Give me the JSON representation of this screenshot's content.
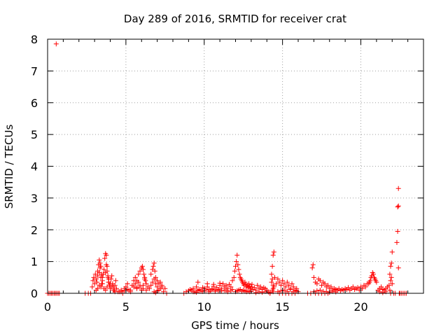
{
  "chart_data": {
    "type": "scatter",
    "title": "Day 289 of 2016, SRMTID for receiver crat",
    "xlabel": "GPS time / hours",
    "ylabel": "SRMTID / TECUs",
    "xlim": [
      0,
      24
    ],
    "ylim": [
      0,
      8
    ],
    "x_ticks": [
      0,
      5,
      10,
      15,
      20
    ],
    "x_tick_labels": [
      "0",
      "5",
      "10",
      "15",
      "20"
    ],
    "y_ticks": [
      0,
      1,
      2,
      3,
      4,
      5,
      6,
      7,
      8
    ],
    "y_tick_labels": [
      "0",
      "1",
      "2",
      "3",
      "4",
      "5",
      "6",
      "7",
      "8"
    ],
    "grid": true,
    "marker": "plus",
    "marker_color": "#ff0000",
    "series": [
      {
        "name": "SRMTID",
        "x": [
          0.0,
          0.08,
          0.17,
          0.25,
          0.33,
          0.42,
          0.5,
          0.58,
          0.67,
          0.75,
          0.55,
          2.4,
          2.6,
          2.75,
          2.85,
          2.9,
          2.95,
          3.0,
          3.05,
          3.1,
          3.15,
          3.2,
          3.25,
          3.3,
          3.35,
          3.4,
          3.45,
          3.5,
          3.55,
          3.6,
          3.65,
          3.7,
          3.75,
          3.8,
          3.85,
          3.9,
          3.95,
          4.0,
          4.05,
          4.1,
          4.15,
          4.2,
          4.25,
          4.3,
          4.35,
          4.4,
          4.5,
          3.1,
          3.2,
          3.3,
          3.4,
          3.5,
          3.6,
          3.7,
          3.8,
          3.9,
          4.0,
          4.1,
          4.2,
          4.3,
          3.2,
          3.3,
          3.35,
          3.4,
          3.45,
          3.5,
          3.7,
          3.75,
          3.8,
          3.85,
          3.9,
          4.6,
          4.7,
          4.8,
          4.9,
          5.0,
          5.1,
          5.2,
          5.3,
          5.4,
          5.5,
          5.6,
          5.7,
          5.8,
          5.9,
          6.0,
          6.1,
          6.2,
          6.3,
          6.4,
          4.7,
          4.9,
          5.1,
          5.3,
          5.5,
          5.7,
          5.9,
          6.1,
          6.3,
          5.6,
          5.7,
          5.8,
          5.9,
          6.0,
          6.05,
          6.1,
          6.15,
          6.2,
          6.25,
          6.5,
          6.6,
          6.7,
          6.8,
          6.9,
          7.0,
          7.1,
          7.2,
          7.3,
          7.4,
          6.6,
          6.7,
          6.75,
          6.8,
          6.85,
          6.9,
          7.0,
          7.1,
          7.2,
          7.3,
          7.5,
          6.8,
          6.9,
          7.0,
          7.6,
          8.7,
          8.85,
          9.0,
          9.1,
          9.2,
          9.3,
          9.4,
          9.5,
          9.6,
          9.7,
          9.8,
          9.9,
          10.0,
          10.1,
          10.2,
          10.3,
          10.4,
          10.5,
          10.6,
          10.7,
          10.8,
          10.9,
          11.0,
          11.1,
          11.2,
          11.3,
          11.4,
          11.5,
          11.6,
          11.7,
          11.8,
          9.3,
          9.5,
          9.7,
          9.9,
          10.1,
          10.3,
          10.5,
          10.7,
          10.9,
          11.1,
          11.3,
          11.5,
          11.7,
          9.6,
          10.2,
          10.6,
          11.0,
          11.4,
          11.8,
          11.9,
          11.95,
          12.0,
          12.05,
          12.1,
          12.15,
          12.2,
          12.25,
          12.3,
          12.35,
          12.4,
          12.45,
          12.5,
          12.55,
          12.6,
          12.65,
          12.7,
          12.75,
          12.8,
          12.85,
          12.9,
          12.95,
          13.0,
          13.05,
          13.1,
          13.2,
          13.3,
          13.4,
          13.5,
          13.6,
          13.7,
          13.8,
          13.9,
          14.0,
          12.0,
          12.1,
          12.2,
          12.3,
          12.4,
          12.5,
          12.6,
          12.7,
          12.8,
          12.9,
          13.0,
          13.3,
          13.5,
          13.7,
          13.9,
          14.1,
          14.2,
          14.3,
          14.35,
          14.4,
          14.45,
          14.5,
          14.3,
          14.35,
          14.4,
          14.35,
          14.4,
          14.4,
          14.45,
          14.6,
          14.7,
          14.8,
          14.9,
          15.0,
          15.1,
          15.2,
          15.3,
          15.4,
          15.5,
          15.6,
          15.7,
          15.8,
          15.9,
          16.0,
          14.7,
          14.9,
          15.1,
          15.3,
          15.5,
          15.7,
          15.9,
          14.8,
          15.0,
          15.2,
          15.4,
          15.6,
          15.8,
          14.2,
          16.6,
          16.8,
          16.9,
          16.95,
          17.0,
          17.1,
          17.2,
          17.3,
          17.4,
          17.5,
          17.6,
          17.7,
          17.8,
          17.9,
          18.0,
          18.1,
          18.2,
          18.3,
          18.4,
          18.5,
          18.6,
          18.7,
          18.8,
          18.9,
          19.0,
          19.1,
          19.2,
          19.3,
          19.4,
          19.5,
          19.6,
          19.7,
          19.8,
          19.9,
          20.0,
          20.1,
          20.2,
          20.3,
          20.4,
          17.0,
          17.2,
          17.4,
          17.6,
          17.8,
          18.0,
          18.2,
          18.4,
          17.1,
          17.3,
          17.5,
          17.7,
          17.9,
          20.5,
          20.55,
          20.6,
          20.65,
          20.7,
          20.75,
          20.8,
          20.85,
          20.9,
          20.95,
          21.0,
          21.1,
          21.2,
          21.3,
          21.4,
          21.5,
          21.6,
          21.7,
          21.8,
          21.2,
          21.4,
          21.6,
          21.85,
          21.9,
          21.95,
          22.0,
          21.9,
          21.95,
          22.0,
          21.85,
          21.9,
          22.1,
          22.2,
          22.3,
          22.35,
          22.4,
          22.4,
          22.35,
          22.4,
          22.45,
          22.5,
          22.6,
          22.7,
          22.8,
          22.9
        ],
        "y": [
          0,
          0,
          0,
          0,
          0,
          0,
          0,
          0,
          0,
          0,
          7.85,
          0,
          0,
          0,
          0.2,
          0.4,
          0.5,
          0.3,
          0.6,
          0.45,
          0.35,
          0.7,
          0.9,
          1.05,
          0.8,
          0.5,
          0.3,
          0.4,
          0.6,
          0.75,
          1.1,
          1.25,
          1.2,
          0.85,
          0.5,
          0.35,
          0.25,
          0.15,
          0.45,
          0.55,
          0.3,
          0.2,
          0.1,
          0.25,
          0.4,
          0.15,
          0.05,
          0.1,
          0.15,
          0.25,
          0.2,
          0.3,
          0.15,
          0.1,
          0.2,
          0.35,
          0.3,
          0.2,
          0.1,
          0.05,
          0.55,
          0.65,
          0.95,
          0.85,
          0.6,
          0.5,
          0.65,
          0.9,
          0.7,
          0.55,
          0.45,
          0.05,
          0.1,
          0.0,
          0.15,
          0.2,
          0.3,
          0.1,
          0.05,
          0.25,
          0.4,
          0.3,
          0.15,
          0.35,
          0.2,
          0.1,
          0.25,
          0.45,
          0.3,
          0.2,
          0.05,
          0.08,
          0.12,
          0.1,
          0.2,
          0.18,
          0.25,
          0.15,
          0.1,
          0.5,
          0.4,
          0.6,
          0.7,
          0.8,
          0.85,
          0.75,
          0.6,
          0.5,
          0.4,
          0.15,
          0.25,
          0.35,
          0.45,
          0.3,
          0.2,
          0.1,
          0.15,
          0.25,
          0.05,
          0.6,
          0.75,
          0.85,
          0.95,
          0.7,
          0.5,
          0.4,
          0.3,
          0.35,
          0.2,
          0.15,
          0.05,
          0.02,
          0.08,
          0.0,
          0.0,
          0.05,
          0.08,
          0.12,
          0.1,
          0.15,
          0.05,
          0.2,
          0.1,
          0.12,
          0.08,
          0.18,
          0.15,
          0.1,
          0.2,
          0.12,
          0.08,
          0.15,
          0.22,
          0.1,
          0.18,
          0.12,
          0.25,
          0.15,
          0.3,
          0.2,
          0.1,
          0.15,
          0.28,
          0.2,
          0.12,
          0.05,
          0.03,
          0.08,
          0.06,
          0.1,
          0.05,
          0.12,
          0.06,
          0.09,
          0.07,
          0.1,
          0.05,
          0.08,
          0.35,
          0.3,
          0.28,
          0.32,
          0.25,
          0.4,
          0.5,
          0.7,
          0.85,
          1.0,
          1.2,
          0.9,
          0.75,
          0.6,
          0.5,
          0.45,
          0.4,
          0.35,
          0.3,
          0.25,
          0.35,
          0.28,
          0.2,
          0.25,
          0.18,
          0.3,
          0.22,
          0.15,
          0.2,
          0.28,
          0.12,
          0.18,
          0.1,
          0.25,
          0.15,
          0.2,
          0.12,
          0.18,
          0.15,
          0.1,
          0.05,
          0.08,
          0.1,
          0.12,
          0.06,
          0.1,
          0.08,
          0.05,
          0.07,
          0.05,
          0.06,
          0.02,
          0.05,
          0.03,
          0.06,
          0.04,
          0.02,
          0.6,
          0.85,
          1.2,
          1.3,
          0.5,
          0.35,
          0.45,
          0.25,
          0.1,
          0.05,
          0.15,
          0.2,
          0.3,
          0.45,
          0.35,
          0.25,
          0.4,
          0.3,
          0.2,
          0.35,
          0.25,
          0.15,
          0.3,
          0.2,
          0.1,
          0.15,
          0.05,
          0.05,
          0.08,
          0.1,
          0.06,
          0.12,
          0.05,
          0.08,
          0.0,
          0.0,
          0.0,
          0.0,
          0.0,
          0.0,
          0.0,
          0.0,
          0.0,
          0.8,
          0.9,
          0.5,
          0.35,
          0.3,
          0.45,
          0.4,
          0.25,
          0.35,
          0.3,
          0.2,
          0.25,
          0.15,
          0.2,
          0.1,
          0.15,
          0.12,
          0.1,
          0.15,
          0.08,
          0.12,
          0.1,
          0.15,
          0.12,
          0.18,
          0.1,
          0.15,
          0.2,
          0.12,
          0.15,
          0.18,
          0.1,
          0.2,
          0.15,
          0.25,
          0.2,
          0.3,
          0.05,
          0.08,
          0.1,
          0.06,
          0.05,
          0.03,
          0.06,
          0.04,
          0.0,
          0.0,
          0.0,
          0.0,
          0.0,
          0.3,
          0.35,
          0.4,
          0.5,
          0.55,
          0.65,
          0.6,
          0.5,
          0.45,
          0.4,
          0.35,
          0.1,
          0.15,
          0.2,
          0.12,
          0.1,
          0.15,
          0.2,
          0.25,
          0.05,
          0.02,
          0.05,
          0.6,
          0.85,
          0.95,
          1.3,
          0.4,
          0.5,
          0.3,
          0.1,
          0.0,
          0.0,
          0.0,
          1.6,
          1.95,
          2.75,
          3.3,
          2.72,
          0.8,
          0.0,
          0.0,
          0.0,
          0.0,
          0.0,
          0.0
        ]
      }
    ]
  }
}
